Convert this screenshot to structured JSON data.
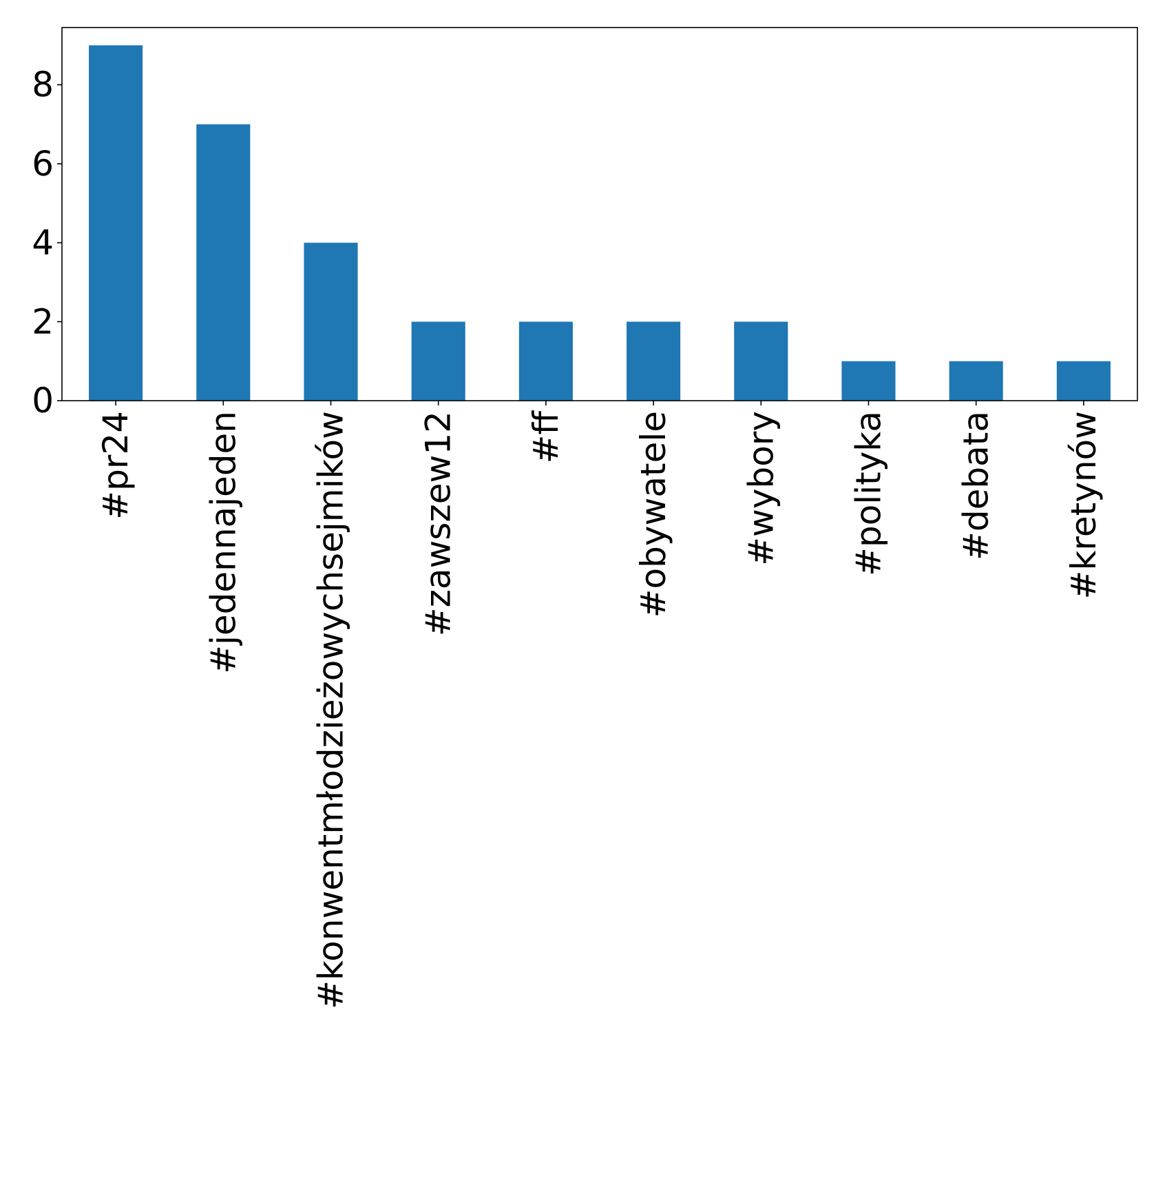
{
  "chart_data": {
    "type": "bar",
    "title": "",
    "xlabel": "",
    "ylabel": "",
    "categories": [
      "#pr24",
      "#jedennajeden",
      "#konwentmłodzieżowychsejmików",
      "#zawszew12",
      "#ff",
      "#obywatele",
      "#wybory",
      "#polityka",
      "#debata",
      "#kretynów"
    ],
    "values": [
      9,
      7,
      4,
      2,
      2,
      2,
      2,
      1,
      1,
      1
    ],
    "ylim": [
      0,
      9.45
    ],
    "yticks": [
      0,
      2,
      4,
      6,
      8
    ],
    "grid": false,
    "legend": "none",
    "bar_color": "#1f77b4",
    "axis_color": "#000000"
  }
}
